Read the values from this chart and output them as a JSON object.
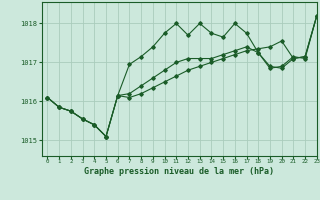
{
  "title": "Graphe pression niveau de la mer (hPa)",
  "background_color": "#cce8dc",
  "grid_color": "#aaccbc",
  "line_color": "#1a5c28",
  "xlim": [
    -0.5,
    23
  ],
  "ylim": [
    1014.6,
    1018.55
  ],
  "yticks": [
    1015,
    1016,
    1017,
    1018
  ],
  "xticks": [
    0,
    1,
    2,
    3,
    4,
    5,
    6,
    7,
    8,
    9,
    10,
    11,
    12,
    13,
    14,
    15,
    16,
    17,
    18,
    19,
    20,
    21,
    22,
    23
  ],
  "series": [
    [
      1016.1,
      1015.85,
      1015.75,
      1015.55,
      1015.4,
      1015.1,
      1016.15,
      1016.95,
      1017.15,
      1017.4,
      1017.75,
      1018.0,
      1017.7,
      1018.0,
      1017.75,
      1017.65,
      1018.0,
      1017.75,
      1017.25,
      1016.85,
      1016.9,
      1017.15,
      1017.1,
      1018.2
    ],
    [
      1016.1,
      1015.85,
      1015.75,
      1015.55,
      1015.4,
      1015.1,
      1016.15,
      1016.1,
      1016.2,
      1016.35,
      1016.5,
      1016.65,
      1016.8,
      1016.9,
      1017.0,
      1017.1,
      1017.2,
      1017.3,
      1017.35,
      1017.4,
      1017.55,
      1017.1,
      1017.15,
      1018.2
    ],
    [
      1016.1,
      1015.85,
      1015.75,
      1015.55,
      1015.4,
      1015.1,
      1016.15,
      1016.2,
      1016.4,
      1016.6,
      1016.8,
      1017.0,
      1017.1,
      1017.1,
      1017.1,
      1017.2,
      1017.3,
      1017.4,
      1017.25,
      1016.9,
      1016.85,
      1017.1,
      1017.15,
      1018.2
    ]
  ]
}
